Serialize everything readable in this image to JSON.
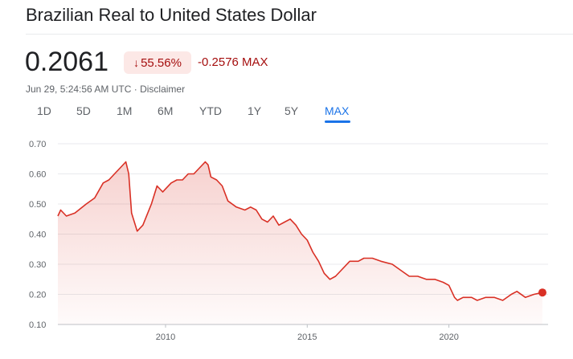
{
  "header": {
    "title": "Brazilian Real to United States Dollar",
    "price": "0.2061",
    "change_pct": "55.56%",
    "change_abs": "-0.2576 MAX",
    "timestamp": "Jun 29, 5:24:56 AM UTC · Disclaimer"
  },
  "range_tabs": [
    {
      "label": "1D",
      "active": false
    },
    {
      "label": "5D",
      "active": false
    },
    {
      "label": "1M",
      "active": false
    },
    {
      "label": "6M",
      "active": false
    },
    {
      "label": "YTD",
      "active": false
    },
    {
      "label": "1Y",
      "active": false
    },
    {
      "label": "5Y",
      "active": false
    },
    {
      "label": "MAX",
      "active": true
    }
  ],
  "colors": {
    "line": "#d93025",
    "negative_text": "#a50e0e",
    "badge_bg": "#fce8e6",
    "active_tab": "#1a73e8"
  },
  "chart_data": {
    "type": "area",
    "title": "",
    "xlabel": "",
    "ylabel": "",
    "ylim": [
      0.1,
      0.7
    ],
    "yticks": [
      "0.70",
      "0.60",
      "0.50",
      "0.40",
      "0.30",
      "0.20",
      "0.10"
    ],
    "xlim": [
      2006.2,
      2023.5
    ],
    "xticks": [
      "2010",
      "2015",
      "2020"
    ],
    "grid": true,
    "x": [
      2006.2,
      2006.3,
      2006.5,
      2006.8,
      2007.2,
      2007.5,
      2007.8,
      2008.0,
      2008.2,
      2008.4,
      2008.6,
      2008.7,
      2008.8,
      2008.9,
      2009.0,
      2009.2,
      2009.5,
      2009.7,
      2009.9,
      2010.0,
      2010.2,
      2010.4,
      2010.6,
      2010.8,
      2011.0,
      2011.2,
      2011.4,
      2011.5,
      2011.6,
      2011.8,
      2012.0,
      2012.2,
      2012.5,
      2012.8,
      2013.0,
      2013.2,
      2013.4,
      2013.6,
      2013.8,
      2014.0,
      2014.2,
      2014.4,
      2014.6,
      2014.8,
      2015.0,
      2015.2,
      2015.4,
      2015.6,
      2015.8,
      2016.0,
      2016.2,
      2016.5,
      2016.8,
      2017.0,
      2017.3,
      2017.6,
      2018.0,
      2018.3,
      2018.6,
      2018.9,
      2019.2,
      2019.5,
      2019.8,
      2020.0,
      2020.2,
      2020.3,
      2020.5,
      2020.8,
      2021.0,
      2021.3,
      2021.6,
      2021.9,
      2022.2,
      2022.4,
      2022.7,
      2023.0,
      2023.3
    ],
    "series": [
      {
        "values": [
          0.46,
          0.48,
          0.46,
          0.47,
          0.5,
          0.52,
          0.57,
          0.58,
          0.6,
          0.62,
          0.64,
          0.6,
          0.47,
          0.44,
          0.41,
          0.43,
          0.5,
          0.56,
          0.54,
          0.55,
          0.57,
          0.58,
          0.58,
          0.6,
          0.6,
          0.62,
          0.64,
          0.63,
          0.59,
          0.58,
          0.56,
          0.51,
          0.49,
          0.48,
          0.49,
          0.48,
          0.45,
          0.44,
          0.46,
          0.43,
          0.44,
          0.45,
          0.43,
          0.4,
          0.38,
          0.34,
          0.31,
          0.27,
          0.25,
          0.26,
          0.28,
          0.31,
          0.31,
          0.32,
          0.32,
          0.31,
          0.3,
          0.28,
          0.26,
          0.26,
          0.25,
          0.25,
          0.24,
          0.23,
          0.19,
          0.18,
          0.19,
          0.19,
          0.18,
          0.19,
          0.19,
          0.18,
          0.2,
          0.21,
          0.19,
          0.2,
          0.2061
        ]
      }
    ]
  }
}
